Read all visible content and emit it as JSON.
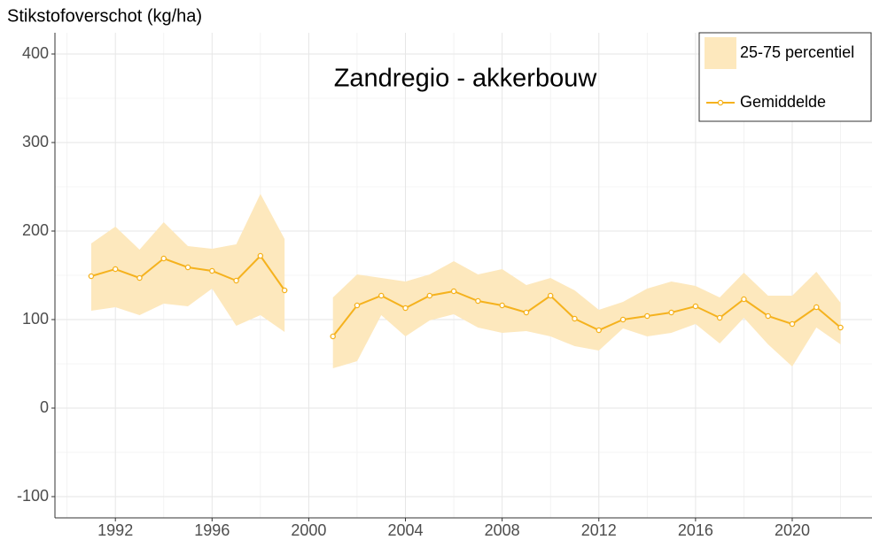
{
  "chart_data": {
    "type": "line",
    "title": "Zandregio - akkerbouw",
    "y_label": "Stikstofoverschot (kg/ha)",
    "x": [
      1991,
      1992,
      1993,
      1994,
      1995,
      1996,
      1997,
      1998,
      1999,
      2000,
      2001,
      2002,
      2003,
      2004,
      2005,
      2006,
      2007,
      2008,
      2009,
      2010,
      2011,
      2012,
      2013,
      2014,
      2015,
      2016,
      2017,
      2018,
      2019,
      2020,
      2021,
      2022
    ],
    "series": [
      {
        "name": "25-75 percentiel",
        "type": "band",
        "color": "#fde8bd",
        "lower": [
          110,
          114,
          105,
          118,
          115,
          135,
          93,
          105,
          86,
          null,
          45,
          53,
          105,
          81,
          99,
          106,
          91,
          85,
          87,
          81,
          70,
          65,
          90,
          81,
          85,
          95,
          73,
          102,
          72,
          47,
          91,
          72
        ],
        "upper": [
          186,
          205,
          179,
          210,
          183,
          180,
          185,
          242,
          191,
          null,
          125,
          151,
          147,
          143,
          151,
          166,
          151,
          157,
          139,
          147,
          133,
          111,
          120,
          135,
          143,
          138,
          125,
          153,
          127,
          127,
          154,
          119
        ]
      },
      {
        "name": "Gemiddelde",
        "type": "line",
        "color": "#f5b21e",
        "values": [
          149,
          157,
          147,
          169,
          159,
          155,
          144,
          172,
          133,
          null,
          81,
          116,
          127,
          113,
          127,
          132,
          121,
          116,
          108,
          127,
          101,
          88,
          100,
          104,
          108,
          115,
          102,
          123,
          104,
          95,
          114,
          91
        ]
      }
    ],
    "xlim": [
      1989.5,
      2023.3
    ],
    "xticks": [
      1992,
      1996,
      2000,
      2004,
      2008,
      2012,
      2016,
      2020
    ],
    "ylim": [
      -124,
      424
    ],
    "yticks": [
      -100,
      0,
      100,
      200,
      300,
      400
    ],
    "grid": true,
    "legend": "top-right"
  }
}
